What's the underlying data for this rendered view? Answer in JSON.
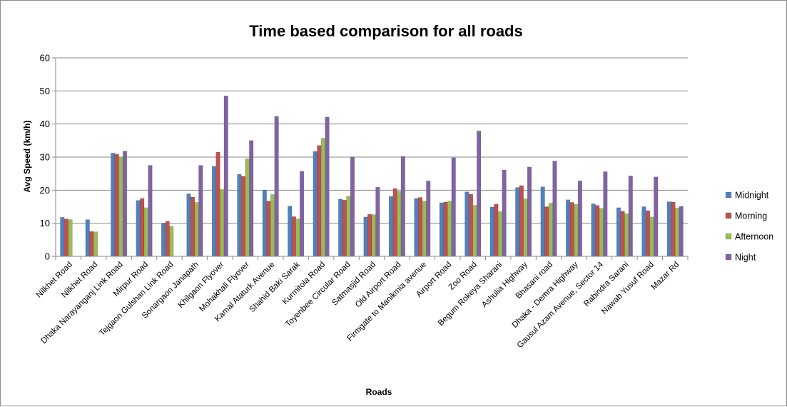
{
  "chart_data": {
    "type": "bar",
    "title": "Time based comparison for all roads",
    "xlabel": "Roads",
    "ylabel": "Avg Speed (km/h)",
    "ylim": [
      0,
      60
    ],
    "yticks": [
      "0",
      "10",
      "20",
      "30",
      "40",
      "50",
      "60"
    ],
    "grid": true,
    "legend_position": "right",
    "categories": [
      "Nilkhet Road",
      "Nilkhet Road",
      "Dhaka Narayanganj Link Road",
      "Mirpur Road",
      "Tejgaon Gulshan Link Road",
      "Sonargaon Janapath",
      "Khilgaon Flyover",
      "Mohakhali Flyover",
      "Kamal Ataturk Avenue",
      "Shahid Baki Sarak",
      "Kurmitola Road",
      "Toyenbee Circular Road",
      "Satmasjid Road",
      "Old Airport Road",
      "Firmgate to Manikmia avenue",
      "Airport Road",
      "Zoo Road",
      "Begum Rokeya Sharani",
      "Ashulia Highway",
      "Bhasani road",
      "Dhaka - Demra Highway",
      "Gausul Azam Avenue, Sector 14",
      "Rabindra Sarani",
      "Nawab Yusuf Road",
      "Mazar Rd"
    ],
    "series": [
      {
        "name": "Midnight",
        "color": "#4f81bd",
        "values": [
          11.8,
          11.1,
          31.2,
          16.9,
          10.0,
          18.9,
          27.2,
          24.8,
          20.0,
          15.2,
          31.7,
          17.3,
          11.9,
          18.1,
          17.5,
          16.2,
          19.5,
          14.9,
          20.8,
          21.0,
          17.1,
          15.9,
          14.7,
          15.0,
          16.5
        ]
      },
      {
        "name": "Morning",
        "color": "#c0504d",
        "values": [
          11.3,
          7.5,
          30.9,
          17.5,
          10.6,
          17.9,
          31.5,
          24.2,
          16.7,
          12.0,
          33.5,
          17.0,
          12.7,
          20.5,
          17.8,
          16.4,
          18.8,
          15.8,
          21.4,
          15.0,
          16.3,
          15.4,
          13.6,
          13.8,
          16.4
        ]
      },
      {
        "name": "Afternoon",
        "color": "#9bbb59",
        "values": [
          11.1,
          7.4,
          30.1,
          14.7,
          9.1,
          16.3,
          20.2,
          29.5,
          18.7,
          11.3,
          35.7,
          18.2,
          12.6,
          19.6,
          16.7,
          16.7,
          15.4,
          13.5,
          17.4,
          16.1,
          15.7,
          14.5,
          12.9,
          11.9,
          14.6
        ]
      },
      {
        "name": "Night",
        "color": "#8064a2",
        "values": [
          null,
          null,
          31.8,
          27.5,
          null,
          27.5,
          48.5,
          35.0,
          42.3,
          25.7,
          42.1,
          30.0,
          20.9,
          30.2,
          22.8,
          29.8,
          37.9,
          26.1,
          27.0,
          28.8,
          22.8,
          25.6,
          24.3,
          24.0,
          15.1
        ]
      }
    ]
  }
}
